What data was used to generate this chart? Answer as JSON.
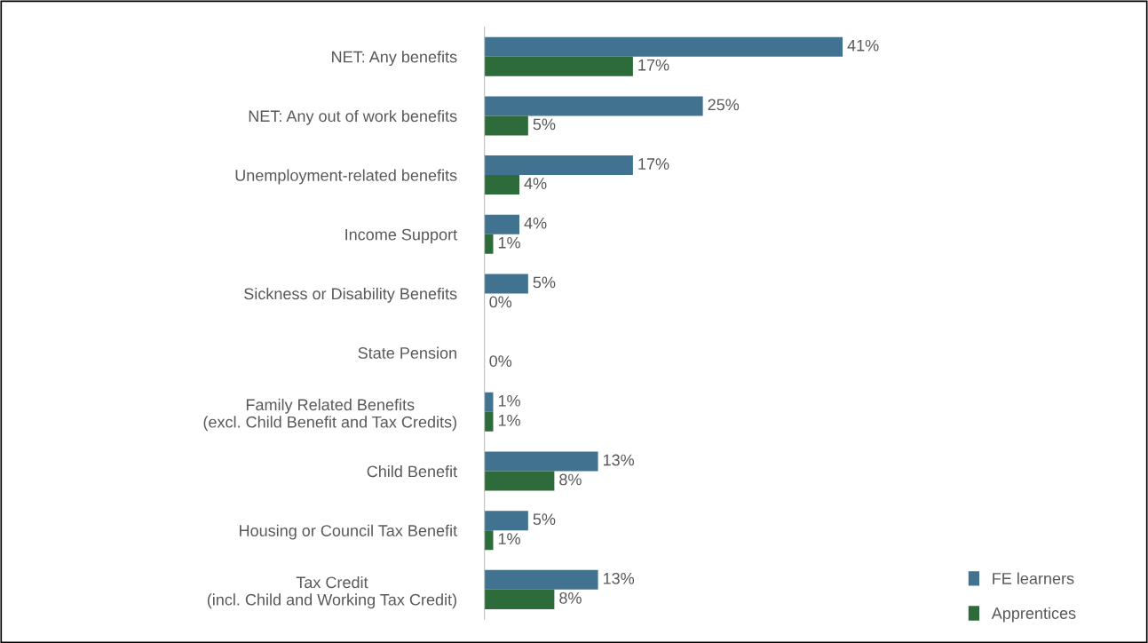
{
  "chart_data": {
    "type": "bar",
    "orientation": "horizontal",
    "categories": [
      "NET: Any benefits",
      "NET: Any out of work benefits",
      "Unemployment-related benefits",
      "Income Support",
      "Sickness or Disability Benefits",
      "State Pension",
      "Family Related Benefits\n(excl. Child Benefit and Tax Credits)",
      "Child Benefit",
      "Housing or Council Tax Benefit",
      "Tax Credit\n(incl. Child and Working Tax Credit)"
    ],
    "series": [
      {
        "name": "FE learners",
        "color": "#41728f",
        "values": [
          41,
          25,
          17,
          4,
          5,
          null,
          1,
          13,
          5,
          13
        ],
        "value_labels": [
          "41%",
          "25%",
          "17%",
          "4%",
          "5%",
          null,
          "1%",
          "13%",
          "5%",
          "13%"
        ]
      },
      {
        "name": "Apprentices",
        "color": "#2e6b3a",
        "values": [
          17,
          5,
          4,
          1,
          0,
          0,
          1,
          8,
          1,
          8
        ],
        "value_labels": [
          "17%",
          "5%",
          "4%",
          "1%",
          "0%",
          "0%",
          "1%",
          "8%",
          "1%",
          "8%"
        ]
      }
    ],
    "legend": "bottom right",
    "grid": false,
    "tick_labels": "y"
  }
}
